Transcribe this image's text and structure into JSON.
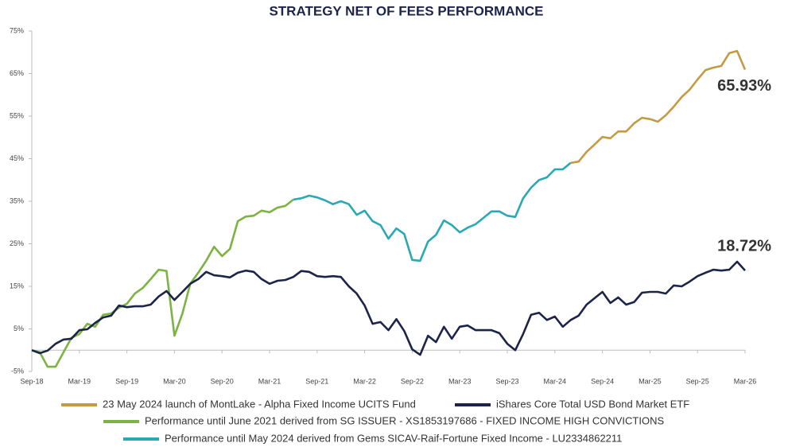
{
  "chart_data": {
    "type": "line",
    "title": "STRATEGY NET OF FEES PERFORMANCE",
    "categories": [
      "Sep-18",
      null,
      null,
      null,
      null,
      null,
      "Mar-19",
      null,
      null,
      null,
      null,
      null,
      "Sep-19",
      null,
      null,
      null,
      null,
      null,
      "Mar-20",
      null,
      null,
      null,
      null,
      null,
      "Sep-20",
      null,
      null,
      null,
      null,
      null,
      "Mar-21",
      null,
      null,
      null,
      null,
      null,
      "Sep-21",
      null,
      null,
      null,
      null,
      null,
      "Mar-22",
      null,
      null,
      null,
      null,
      null,
      "Sep-22",
      null,
      null,
      null,
      null,
      null,
      "Mar-23",
      null,
      null,
      null,
      null,
      null,
      "Sep-23",
      null,
      null,
      null,
      null,
      null,
      "Mar-24",
      null,
      null,
      null,
      null,
      null,
      "Sep-24",
      null,
      null,
      null,
      null,
      null,
      "Mar-25",
      null,
      null,
      null,
      null,
      null,
      "Sep-25",
      null,
      null,
      null,
      null,
      null,
      "Mar-26"
    ],
    "ylim": [
      -5,
      75
    ],
    "yticks": [
      {
        "value": -5,
        "label": "-5%"
      },
      {
        "value": 5,
        "label": "5%"
      },
      {
        "value": 15,
        "label": "15%"
      },
      {
        "value": 25,
        "label": "25%"
      },
      {
        "value": 35,
        "label": "35%"
      },
      {
        "value": 45,
        "label": "45%"
      },
      {
        "value": 55,
        "label": "55%"
      },
      {
        "value": 65,
        "label": "65%"
      },
      {
        "value": 75,
        "label": "75%"
      }
    ],
    "grid": false,
    "legend": "bottom",
    "series": [
      {
        "name": "23 May 2024 launch of MontLake - Alpha Fixed Income UCITS Fund",
        "color": "#c49a44",
        "values": [
          null,
          null,
          null,
          null,
          null,
          null,
          null,
          null,
          null,
          null,
          null,
          null,
          null,
          null,
          null,
          null,
          null,
          null,
          null,
          null,
          null,
          null,
          null,
          null,
          null,
          null,
          null,
          null,
          null,
          null,
          null,
          null,
          null,
          null,
          null,
          null,
          null,
          null,
          null,
          null,
          null,
          null,
          null,
          null,
          null,
          null,
          null,
          null,
          null,
          null,
          null,
          null,
          null,
          null,
          null,
          null,
          null,
          null,
          null,
          null,
          null,
          null,
          null,
          null,
          null,
          null,
          null,
          null,
          44.0,
          44.3,
          46.6,
          48.3,
          50.1,
          49.8,
          51.4,
          51.4,
          53.3,
          54.6,
          54.3,
          53.7,
          55.2,
          57.2,
          59.5,
          61.2,
          63.6,
          65.8,
          66.4,
          66.8,
          69.8,
          70.3,
          65.93
        ],
        "value_labels": [
          null,
          null,
          null,
          null,
          null,
          null,
          null,
          null,
          null,
          null,
          null,
          null,
          null,
          null,
          null,
          null,
          null,
          null,
          null,
          null,
          null,
          null,
          null,
          null,
          null,
          null,
          null,
          null,
          null,
          null,
          null,
          null,
          null,
          null,
          null,
          null,
          null,
          null,
          null,
          null,
          null,
          null,
          null,
          null,
          null,
          null,
          null,
          null,
          null,
          null,
          null,
          null,
          null,
          null,
          null,
          null,
          null,
          null,
          null,
          null,
          null,
          null,
          null,
          null,
          null,
          null,
          null,
          null,
          null,
          null,
          null,
          null,
          null,
          null,
          null,
          null,
          null,
          null,
          null,
          null,
          null,
          null,
          null,
          null,
          null,
          null,
          null,
          null,
          null,
          null,
          "65.93%"
        ]
      },
      {
        "name": "iShares Core Total USD Bond Market ETF",
        "color": "#1c2449",
        "values": [
          0,
          -0.7,
          -0.1,
          1.5,
          2.5,
          2.7,
          4.7,
          4.9,
          6.4,
          7.7,
          8.1,
          10.5,
          10.1,
          10.3,
          10.3,
          10.7,
          12.6,
          13.9,
          11.8,
          13.7,
          15.6,
          16.7,
          18.4,
          17.6,
          17.4,
          17.1,
          18.2,
          18.7,
          18.4,
          16.7,
          15.6,
          16.3,
          16.5,
          17.2,
          18.6,
          18.4,
          17.4,
          17.2,
          17.4,
          17.2,
          15.0,
          13.3,
          10.5,
          6.2,
          6.6,
          4.7,
          7.3,
          4.5,
          0.2,
          -1.1,
          3.4,
          1.9,
          5.5,
          2.7,
          5.5,
          5.8,
          4.7,
          4.7,
          4.7,
          4.0,
          1.5,
          0.0,
          3.8,
          8.3,
          8.8,
          7.1,
          7.9,
          5.5,
          7.1,
          8.1,
          10.7,
          12.2,
          13.7,
          11.1,
          12.4,
          10.7,
          11.3,
          13.5,
          13.7,
          13.7,
          13.3,
          15.2,
          15.0,
          16.1,
          17.4,
          18.2,
          18.9,
          18.7,
          18.9,
          20.8,
          18.72
        ],
        "value_labels": [
          null,
          null,
          null,
          null,
          null,
          null,
          null,
          null,
          null,
          null,
          null,
          null,
          null,
          null,
          null,
          null,
          null,
          null,
          null,
          null,
          null,
          null,
          null,
          null,
          null,
          null,
          null,
          null,
          null,
          null,
          null,
          null,
          null,
          null,
          null,
          null,
          null,
          null,
          null,
          null,
          null,
          null,
          null,
          null,
          null,
          null,
          null,
          null,
          null,
          null,
          null,
          null,
          null,
          null,
          null,
          null,
          null,
          null,
          null,
          null,
          null,
          null,
          null,
          null,
          null,
          null,
          null,
          null,
          null,
          null,
          null,
          null,
          null,
          null,
          null,
          null,
          null,
          null,
          null,
          null,
          null,
          null,
          null,
          null,
          null,
          null,
          null,
          null,
          null,
          null,
          "18.72%"
        ]
      },
      {
        "name": "Performance until June 2021 derived from SG ISSUER - XS1853197686 - FIXED INCOME HIGH CONVICTIONS",
        "color": "#7cb342",
        "values": [
          0,
          -0.5,
          -3.9,
          -3.9,
          -0.5,
          2.9,
          3.8,
          6.2,
          5.5,
          8.3,
          8.6,
          10.0,
          10.9,
          13.3,
          14.6,
          16.7,
          18.9,
          18.6,
          3.4,
          8.6,
          15.6,
          18.2,
          21.0,
          24.3,
          22.1,
          23.8,
          30.3,
          31.4,
          31.6,
          32.8,
          32.4,
          33.5,
          33.9,
          35.4,
          null,
          null,
          null,
          null,
          null,
          null,
          null,
          null,
          null,
          null,
          null,
          null,
          null,
          null,
          null,
          null,
          null,
          null,
          null,
          null,
          null,
          null,
          null,
          null,
          null,
          null,
          null,
          null,
          null,
          null,
          null,
          null,
          null,
          null,
          null,
          null,
          null,
          null,
          null,
          null,
          null,
          null,
          null,
          null,
          null,
          null,
          null,
          null,
          null,
          null,
          null,
          null,
          null,
          null,
          null,
          null,
          null
        ]
      },
      {
        "name": "Performance until May 2024 derived from Gems SICAV-Raif-Fortune Fixed Income - LU2334862211",
        "color": "#2aa9b5",
        "values": [
          null,
          null,
          null,
          null,
          null,
          null,
          null,
          null,
          null,
          null,
          null,
          null,
          null,
          null,
          null,
          null,
          null,
          null,
          null,
          null,
          null,
          null,
          null,
          null,
          null,
          null,
          null,
          null,
          null,
          null,
          null,
          null,
          null,
          35.4,
          35.7,
          36.3,
          35.9,
          35.2,
          34.3,
          35.0,
          34.3,
          31.8,
          32.8,
          30.3,
          29.4,
          26.2,
          28.6,
          27.3,
          21.2,
          21.0,
          25.5,
          27.1,
          30.5,
          29.4,
          27.7,
          28.8,
          29.6,
          31.1,
          32.6,
          32.6,
          31.6,
          31.3,
          35.7,
          38.2,
          40.0,
          40.6,
          42.5,
          42.5,
          44.0,
          null,
          null,
          null,
          null,
          null,
          null,
          null,
          null,
          null,
          null,
          null,
          null,
          null,
          null,
          null,
          null,
          null,
          null,
          null,
          null,
          null,
          null
        ]
      }
    ]
  }
}
